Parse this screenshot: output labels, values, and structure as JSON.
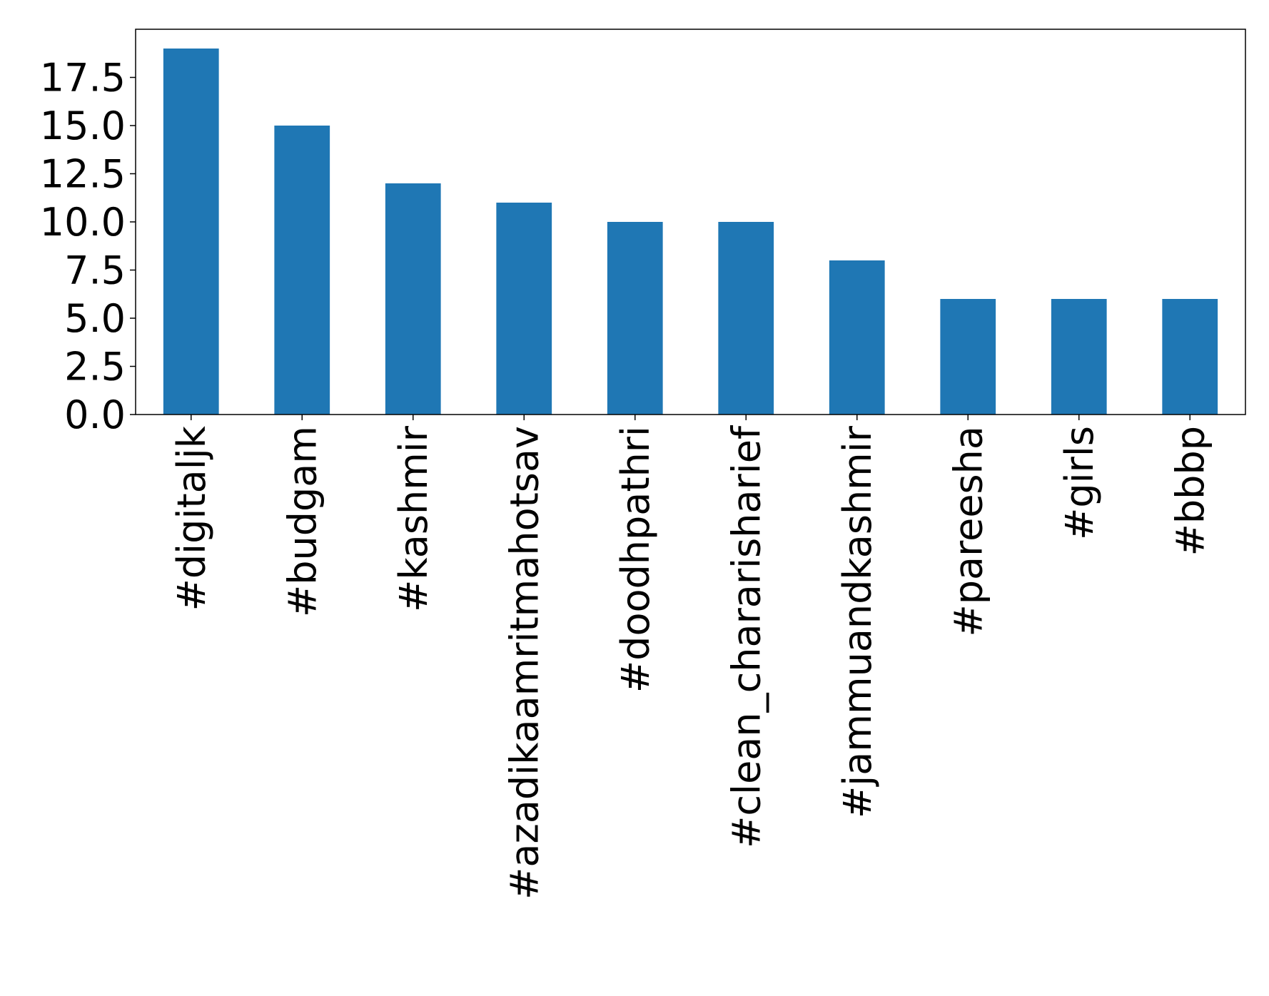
{
  "chart_data": {
    "type": "bar",
    "title": "",
    "xlabel": "",
    "ylabel": "",
    "categories": [
      "#digitaljk",
      "#budgam",
      "#kashmir",
      "#azadikaamritmahotsav",
      "#doodhpathri",
      "#clean_chararisharief",
      "#jammuandkashmir",
      "#pareesha",
      "#girls",
      "#bbbp"
    ],
    "values": [
      19,
      15,
      12,
      11,
      10,
      10,
      8,
      6,
      6,
      6
    ],
    "ylim": [
      0,
      20
    ],
    "yticks": [
      0.0,
      2.5,
      5.0,
      7.5,
      10.0,
      12.5,
      15.0,
      17.5
    ],
    "ytick_labels": [
      "0.0",
      "2.5",
      "5.0",
      "7.5",
      "10.0",
      "12.5",
      "15.0",
      "17.5"
    ],
    "grid": false,
    "legend": false,
    "bar_color": "#1f77b4"
  }
}
